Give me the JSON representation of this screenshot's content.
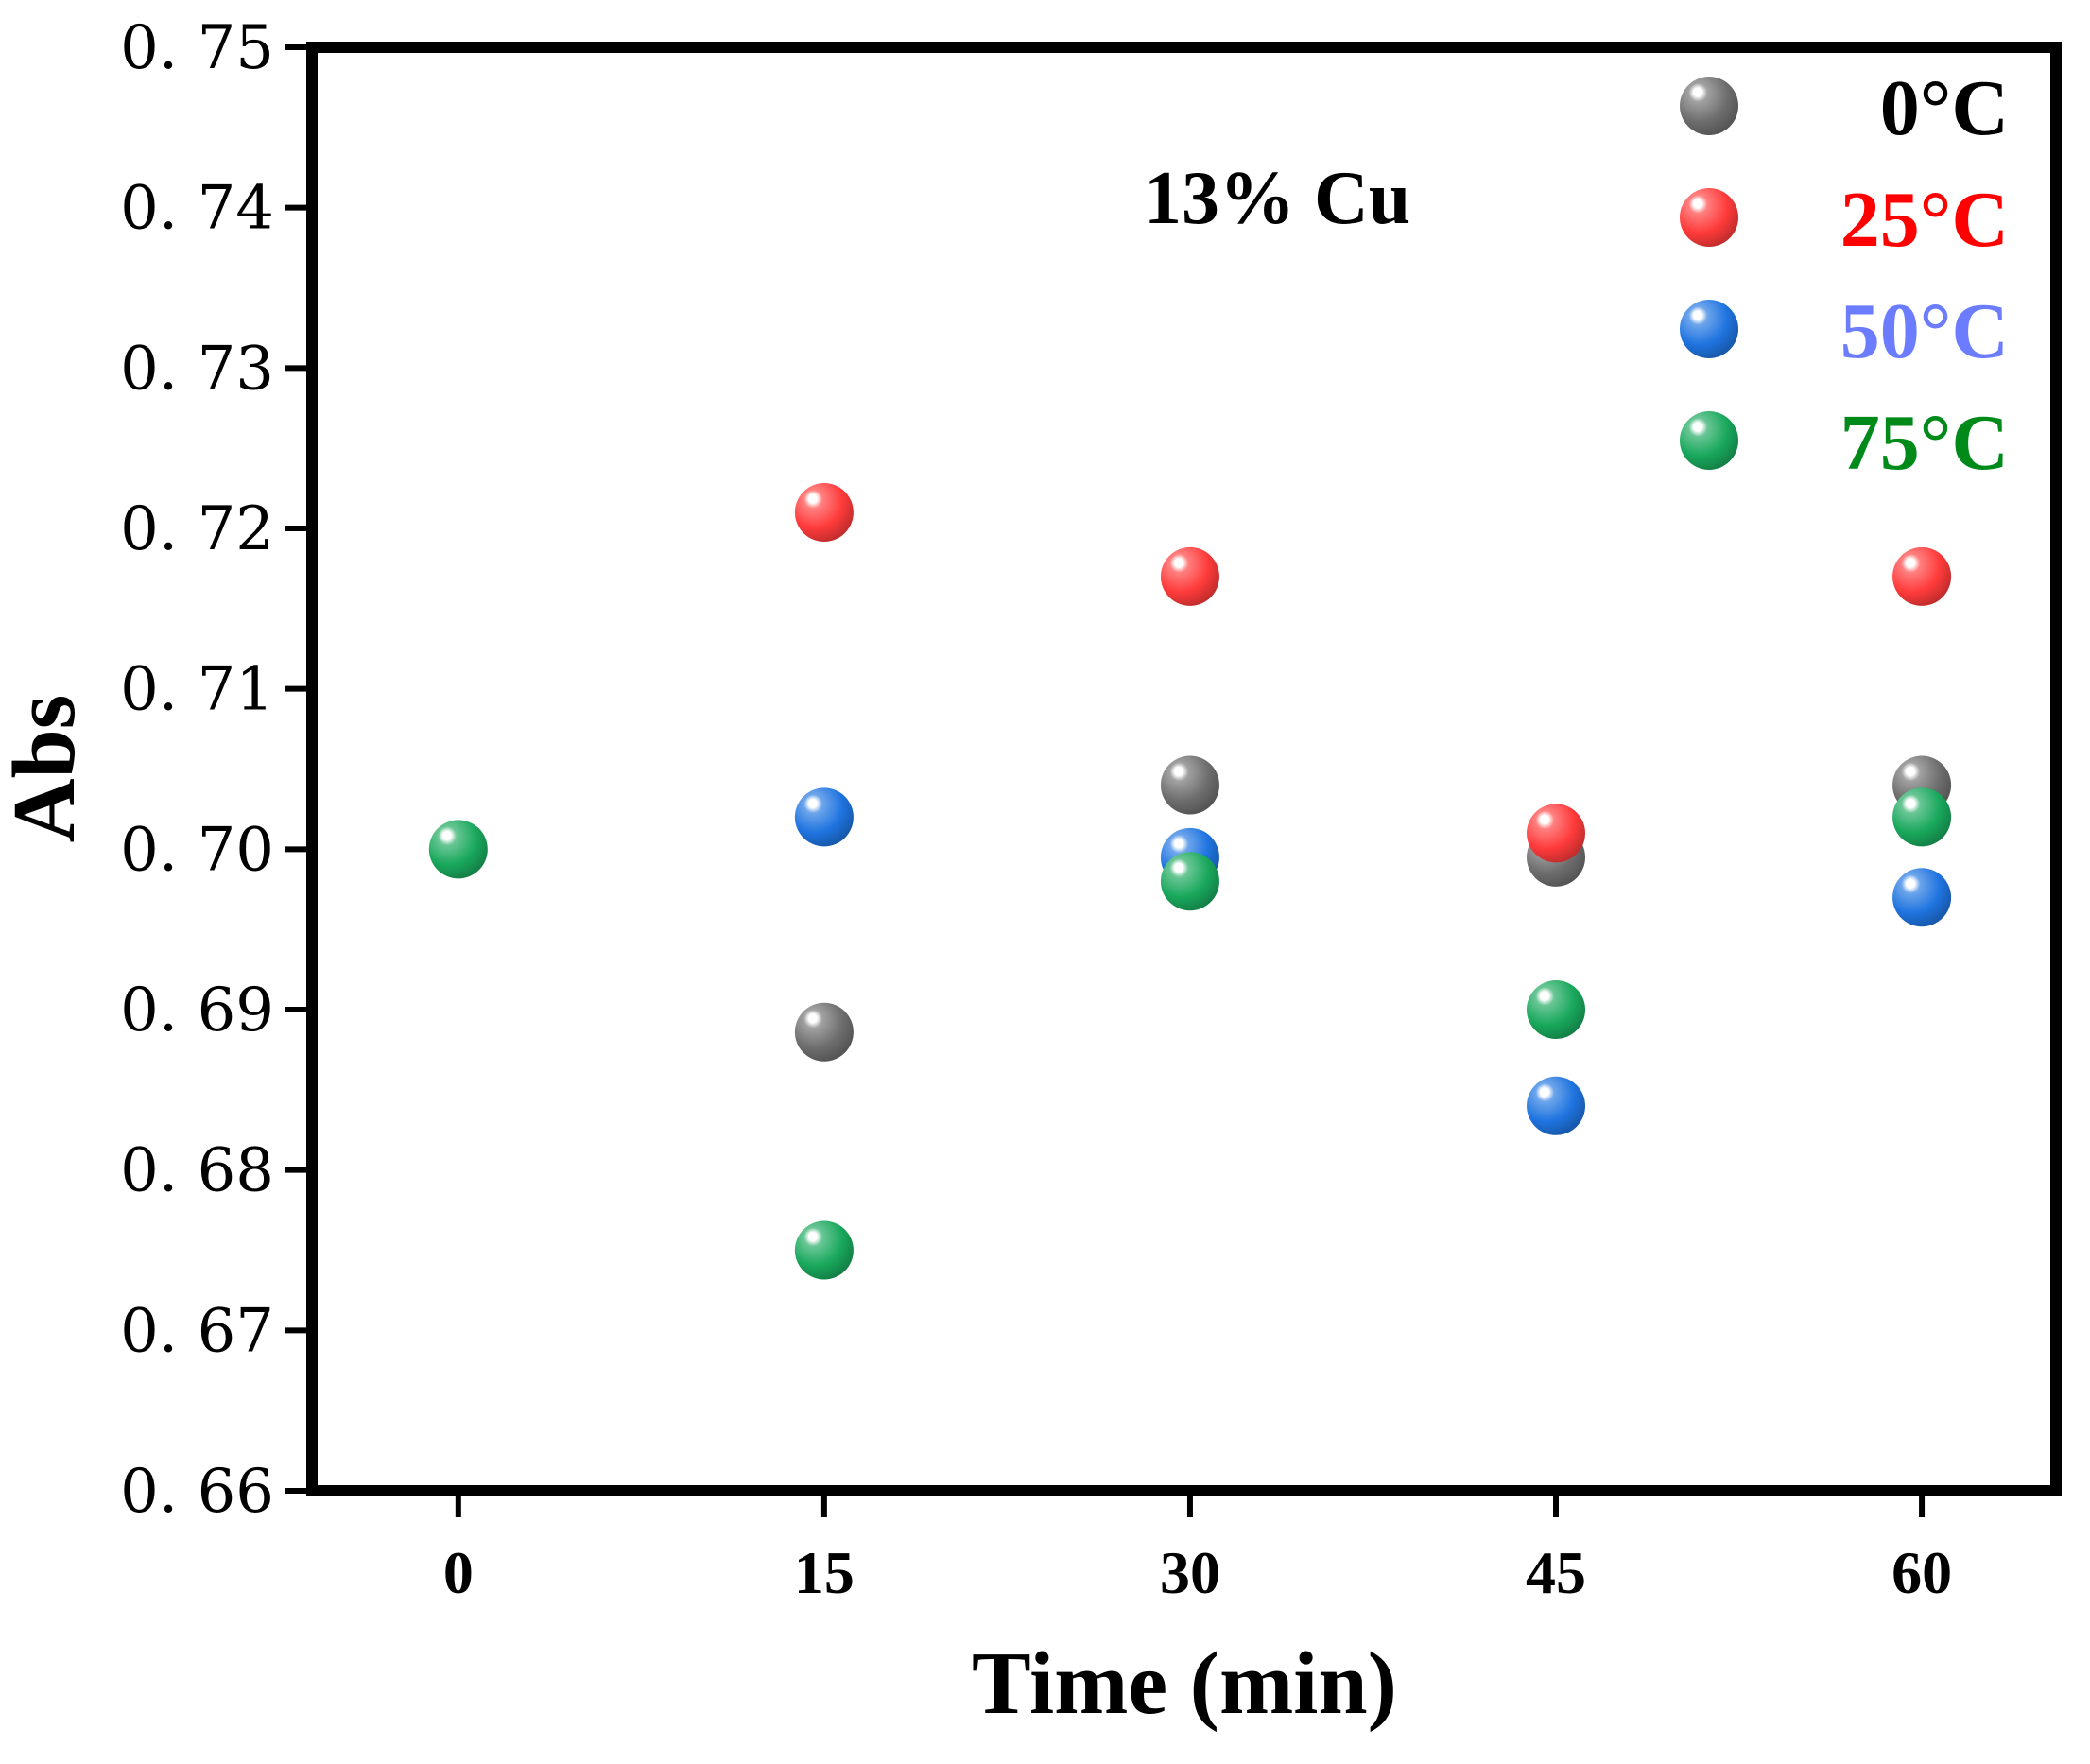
{
  "chart_data": {
    "type": "scatter",
    "xlabel": "Time (min)",
    "ylabel": "Abs",
    "annotation": "13% Cu",
    "x_ticks": [
      0,
      15,
      30,
      45,
      60
    ],
    "x_tick_labels": [
      "0",
      "15",
      "30",
      "45",
      "60"
    ],
    "y_ticks": [
      0.66,
      0.67,
      0.68,
      0.69,
      0.7,
      0.71,
      0.72,
      0.73,
      0.74,
      0.75
    ],
    "y_tick_labels": [
      "0. 66",
      "0. 67",
      "0. 68",
      "0. 69",
      "0. 70",
      "0. 71",
      "0. 72",
      "0. 73",
      "0. 74",
      "0. 75"
    ],
    "xlim": [
      -6,
      65.5
    ],
    "ylim": [
      0.66,
      0.75
    ],
    "grid": false,
    "legend_position": "top-right",
    "series": [
      {
        "name": "0°C",
        "color": "#6e6e6e",
        "label_color": "#000000",
        "points": [
          [
            15,
            0.6886
          ],
          [
            30,
            0.704
          ],
          [
            45,
            0.6995
          ],
          [
            60,
            0.704
          ]
        ]
      },
      {
        "name": "25°C",
        "color": "#ff3b3b",
        "label_color": "#ff0000",
        "points": [
          [
            15,
            0.721
          ],
          [
            30,
            0.717
          ],
          [
            45,
            0.701
          ],
          [
            60,
            0.717
          ]
        ]
      },
      {
        "name": "50°C",
        "color": "#1f74e0",
        "label_color": "#6b7cff",
        "points": [
          [
            15,
            0.702
          ],
          [
            30,
            0.6995
          ],
          [
            45,
            0.684
          ],
          [
            60,
            0.697
          ]
        ]
      },
      {
        "name": "75°C",
        "color": "#19a85c",
        "label_color": "#008a1a",
        "points": [
          [
            0,
            0.7
          ],
          [
            15,
            0.675
          ],
          [
            30,
            0.698
          ],
          [
            45,
            0.69
          ],
          [
            60,
            0.702
          ]
        ]
      }
    ]
  }
}
